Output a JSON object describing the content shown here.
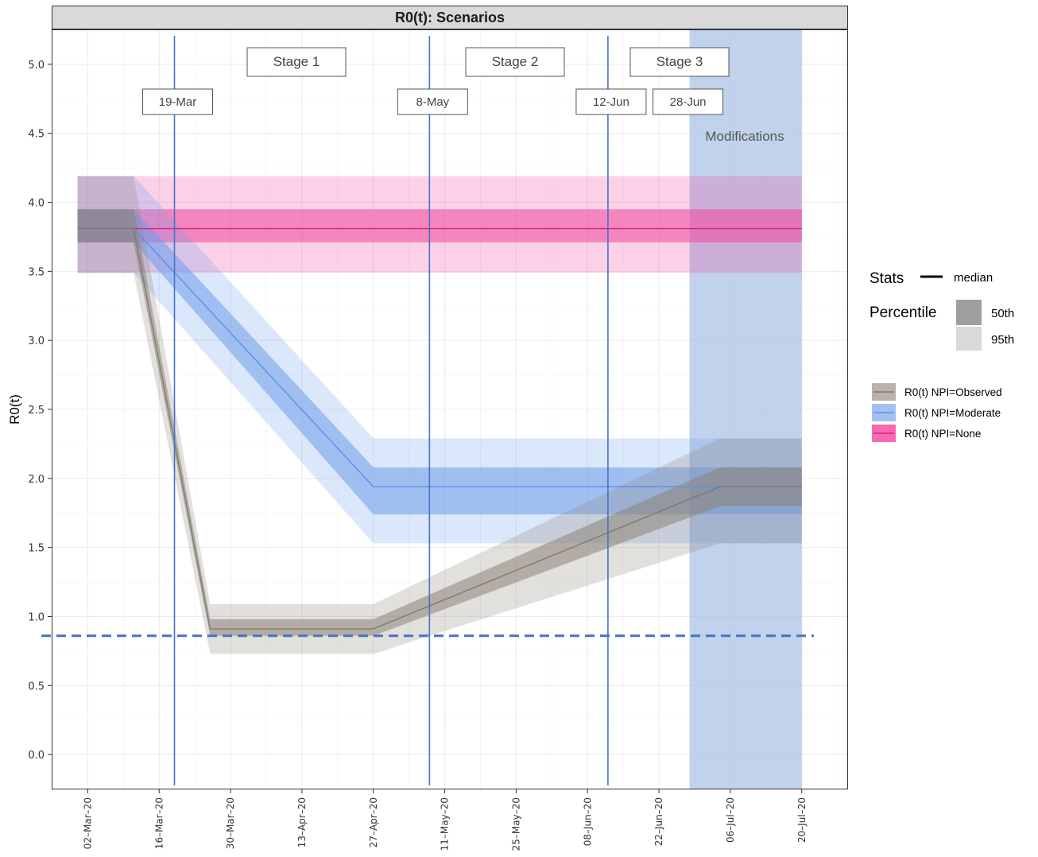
{
  "chart_data": {
    "type": "area",
    "title": "R0(t): Scenarios",
    "xlabel": "",
    "ylabel": "R0(t)",
    "ylim": [
      -0.25,
      5.25
    ],
    "y_ticks": [
      0.0,
      0.5,
      1.0,
      1.5,
      2.0,
      2.5,
      3.0,
      3.5,
      4.0,
      4.5,
      5.0
    ],
    "y_tick_labels": [
      "0.0",
      "0.5",
      "1.0",
      "1.5",
      "2.0",
      "2.5",
      "3.0",
      "3.5",
      "4.0",
      "4.5",
      "5.0"
    ],
    "x_range": [
      "2020-02-24",
      "2020-07-29"
    ],
    "x_ticks": [
      "2020-03-02",
      "2020-03-16",
      "2020-03-30",
      "2020-04-13",
      "2020-04-27",
      "2020-05-11",
      "2020-05-25",
      "2020-06-08",
      "2020-06-22",
      "2020-07-06",
      "2020-07-20"
    ],
    "x_tick_labels": [
      "02–Mar–20",
      "16–Mar–20",
      "30–Mar–20",
      "13–Apr–20",
      "27–Apr–20",
      "11–May–20",
      "25–May–20",
      "08–Jun–20",
      "22–Jun–20",
      "06–Jul–20",
      "20–Jul–20"
    ],
    "grid": true,
    "series": [
      {
        "name": "R0(t) NPI=Observed",
        "color": "#8c8478",
        "x": [
          "2020-02-29",
          "2020-03-11",
          "2020-03-26",
          "2020-04-27",
          "2020-07-04",
          "2020-07-20"
        ],
        "median": [
          3.81,
          3.81,
          0.91,
          0.91,
          1.94,
          1.94
        ],
        "p50_lower": [
          3.71,
          3.71,
          0.86,
          0.86,
          1.8,
          1.8
        ],
        "p50_upper": [
          3.95,
          3.95,
          0.98,
          0.98,
          2.08,
          2.08
        ],
        "p95_lower": [
          3.49,
          3.49,
          0.73,
          0.73,
          1.53,
          1.53
        ],
        "p95_upper": [
          4.19,
          4.19,
          1.09,
          1.09,
          2.29,
          2.29
        ]
      },
      {
        "name": "R0(t) NPI=Moderate",
        "color": "#6f9fea",
        "x": [
          "2020-02-29",
          "2020-03-11",
          "2020-04-27",
          "2020-07-20"
        ],
        "median": [
          3.81,
          3.81,
          1.94,
          1.94
        ],
        "p50_lower": [
          3.71,
          3.71,
          1.74,
          1.74
        ],
        "p50_upper": [
          3.95,
          3.95,
          2.08,
          2.08
        ],
        "p95_lower": [
          3.49,
          3.49,
          1.53,
          1.53
        ],
        "p95_upper": [
          4.19,
          4.19,
          2.29,
          2.29
        ]
      },
      {
        "name": "R0(t) NPI=None",
        "color": "#f0479f",
        "x": [
          "2020-02-29",
          "2020-07-20"
        ],
        "median": [
          3.81,
          3.81
        ],
        "p50_lower": [
          3.71,
          3.71
        ],
        "p50_upper": [
          3.95,
          3.95
        ],
        "p95_lower": [
          3.49,
          3.49
        ],
        "p95_upper": [
          4.19,
          4.19
        ]
      }
    ],
    "reference_line": {
      "y": 0.86,
      "style": "dashed",
      "color": "#4472c4"
    },
    "event_lines": [
      {
        "date": "2020-03-19",
        "label": "19-Mar"
      },
      {
        "date": "2020-05-08",
        "label": "8-May"
      },
      {
        "date": "2020-06-12",
        "label": "12-Jun"
      }
    ],
    "event_labels_only": [
      {
        "date": "2020-06-28",
        "label": "28-Jun"
      }
    ],
    "stage_labels": [
      {
        "date": "2020-04-06",
        "label": "Stage 1"
      },
      {
        "date": "2020-05-21",
        "label": "Stage 2"
      },
      {
        "date": "2020-06-24",
        "label": "Stage 3"
      }
    ],
    "shaded_region": {
      "start": "2020-06-28",
      "end": "2020-07-20",
      "label": "Modifications",
      "color": "#a7bfe6"
    },
    "legend": {
      "placement": "right",
      "stats_title": "Stats",
      "stats_item": "median",
      "percentile_title": "Percentile",
      "percentile_items": [
        "50th",
        "95th"
      ]
    }
  }
}
